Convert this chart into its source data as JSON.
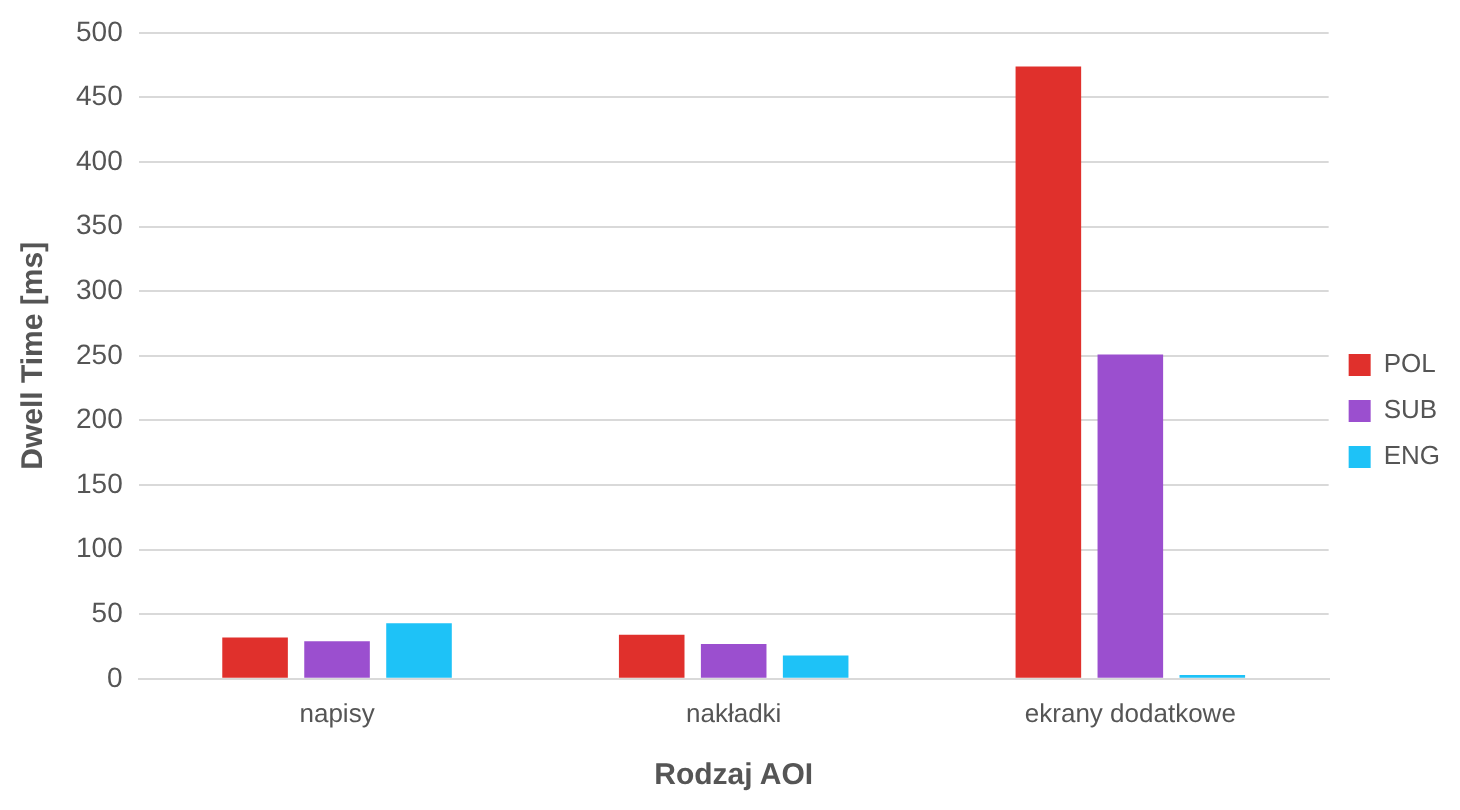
{
  "chart_data": {
    "type": "bar",
    "xlabel": "Rodzaj AOI",
    "ylabel": "Dwell Time [ms]",
    "categories": [
      "napisy",
      "nakładki",
      "ekrany dodatkowe"
    ],
    "series": [
      {
        "name": "POL",
        "color": "#e0302c",
        "values": [
          32,
          34,
          474
        ]
      },
      {
        "name": "SUB",
        "color": "#9b4fcf",
        "values": [
          29,
          27,
          251
        ]
      },
      {
        "name": "ENG",
        "color": "#1ec2f7",
        "values": [
          43,
          18,
          3
        ]
      }
    ],
    "ylim": [
      0,
      500
    ],
    "yticks": [
      0,
      50,
      100,
      150,
      200,
      250,
      300,
      350,
      400,
      450,
      500
    ],
    "grid": "y",
    "legend": "right"
  }
}
